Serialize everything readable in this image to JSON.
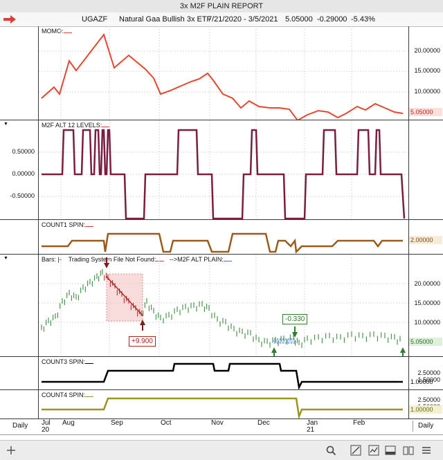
{
  "window": {
    "title": "3x M2F PLAIN REPORT"
  },
  "info": {
    "symbol": "UGAZF",
    "name": "Natural Gaa Bullish 3x ETF",
    "range": "7/21/2020 - 3/5/2021",
    "last": "5.05000",
    "change": "-0.29000",
    "pct": "-5.43%"
  },
  "panes": {
    "momo": {
      "label": "MOMO:",
      "ticks": [
        "20.00000",
        "15.00000",
        "10.00000"
      ],
      "last": "5.05000"
    },
    "levels": {
      "label": "M2F ALT 12 LEVELS:",
      "ticks": [
        "0.50000",
        "0.00000",
        "-0.50000"
      ]
    },
    "count1": {
      "label": "COUNT1 SPIN:",
      "last": "2.00000"
    },
    "bars": {
      "label_bars": "Bars: |-",
      "label_tsf": "Trading System File Not Found:",
      "label_alt": "-->M2F ALT PLAIN:",
      "ticks": [
        "20.00000",
        "15.00000",
        "10.00000"
      ],
      "last": "5.05000",
      "callout_gain": "+9.900",
      "callout_loss": "-0.330"
    },
    "count3": {
      "label": "COUNT3 SPIN:",
      "ticks": [
        "2.50000",
        "1.50000"
      ],
      "last": "1.00000"
    },
    "count4": {
      "label": "COUNT4 SPIN:",
      "ticks": [
        "2.50000",
        "1.50000"
      ],
      "last": "1.00000"
    }
  },
  "axis": {
    "left_label": "Daily",
    "right_label": "Daily",
    "months": [
      "Jul",
      "Aug",
      "Sep",
      "Oct",
      "Nov",
      "Dec",
      "Jan",
      "Feb"
    ],
    "years": [
      "20",
      "21"
    ]
  },
  "colors": {
    "momo": "#e8442c",
    "levels": "#7a1d3f",
    "count1": "#9a5a19",
    "bars_up": "#2e7d2e",
    "bars_down": "#b02020",
    "count3": "#000000",
    "count4": "#9a9420"
  }
}
